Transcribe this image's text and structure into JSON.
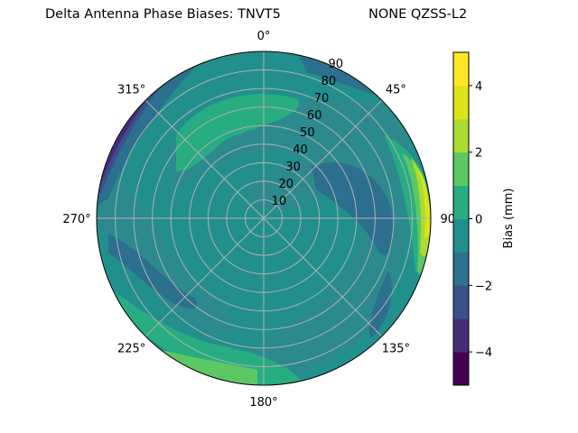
{
  "chart_data": {
    "type": "contour",
    "projection": "polar",
    "title_left": "Delta Antenna Phase Biases: TNVT5",
    "title_right": "NONE QZSS-L2",
    "angular_ticks": [
      "0°",
      "45°",
      "90°",
      "135°",
      "180°",
      "225°",
      "270°",
      "315°"
    ],
    "radial_ticks": [
      "10",
      "20",
      "30",
      "40",
      "50",
      "60",
      "70",
      "80",
      "90"
    ],
    "radial_range": [
      0,
      90
    ],
    "grid": true,
    "colormap": "viridis",
    "levels": [
      -5,
      -4,
      -3,
      -2,
      -1,
      0,
      1,
      2,
      3,
      4,
      5
    ],
    "level_colors": [
      "#440154",
      "#472c7a",
      "#3b518b",
      "#2c718e",
      "#21908d",
      "#27ad81",
      "#5cc863",
      "#aadc32",
      "#dde318",
      "#fde725"
    ],
    "colorbar": {
      "label": "Bias (mm)",
      "ticks": [
        "−4",
        "−2",
        "0",
        "2",
        "4"
      ],
      "range": [
        -5,
        5
      ]
    },
    "features": [
      {
        "region": "east rim, elevation 80-90",
        "bias_range": [
          3,
          5
        ]
      },
      {
        "region": "north-west rim",
        "bias_range": [
          -5,
          -2
        ]
      },
      {
        "region": "south-southwest rim",
        "bias_range": [
          2,
          3
        ]
      },
      {
        "region": "north-west mid ring",
        "bias_range": [
          1,
          2
        ]
      },
      {
        "region": "east-northeast band",
        "bias_range": [
          -2,
          -1
        ]
      },
      {
        "region": "west-southwest band",
        "bias_range": [
          -2,
          -1
        ]
      }
    ]
  }
}
